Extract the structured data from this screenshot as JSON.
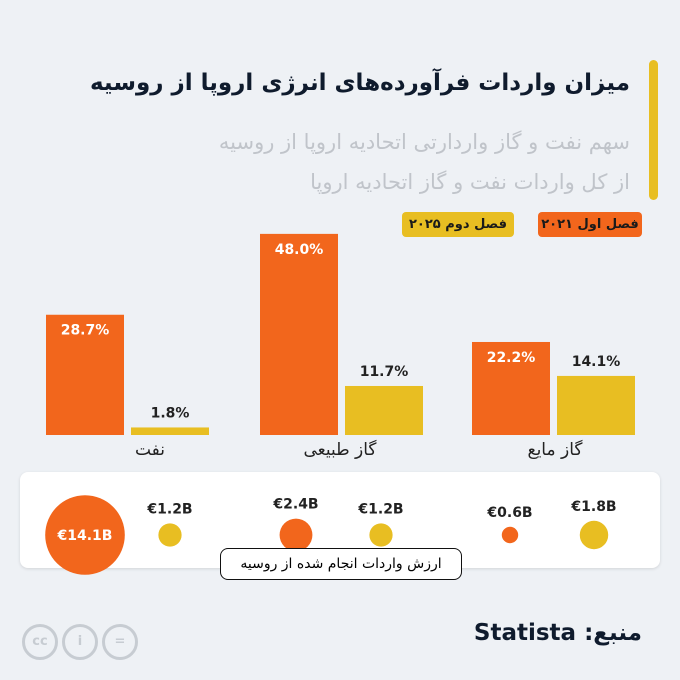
{
  "title": "میزان واردات فرآورده‌های انرژی اروپا از روسیه",
  "subtitle": "سهم نفت و گاز واردارتی اتحادیه اروپا از روسیه از کل واردات نفت و گاز اتحادیه اروپا",
  "colors": {
    "q1_2021": "#f2661c",
    "q2_2025": "#e8be22"
  },
  "chart_data": {
    "type": "bar",
    "categories": [
      "نفت",
      "گاز طبیعی",
      "گاز مایع"
    ],
    "series": [
      {
        "name": "فصل اول ۲۰۲۱",
        "values": [
          28.7,
          48.0,
          22.2
        ],
        "labels": [
          "28.7%",
          "48.0%",
          "22.2%"
        ]
      },
      {
        "name": "فصل دوم ۲۰۲۵",
        "values": [
          1.8,
          11.7,
          14.1
        ],
        "labels": [
          "1.8%",
          "11.7%",
          "14.1%"
        ]
      }
    ],
    "unit": "%",
    "legend": "top-right",
    "import_value": {
      "label": "ارزش واردات انجام شده از روسیه",
      "series": [
        {
          "name": "فصل اول ۲۰۲۱",
          "values": [
            14.1,
            2.4,
            0.6
          ],
          "labels": [
            "€14.1B",
            "€2.4B",
            "€0.6B"
          ]
        },
        {
          "name": "فصل دوم ۲۰۲۵",
          "values": [
            1.2,
            1.2,
            1.8
          ],
          "labels": [
            "€1.2B",
            "€1.2B",
            "€1.8B"
          ]
        }
      ]
    }
  },
  "source": "منبع: Statista",
  "license_icons": [
    "cc-icon",
    "by-icon",
    "nd-icon"
  ]
}
